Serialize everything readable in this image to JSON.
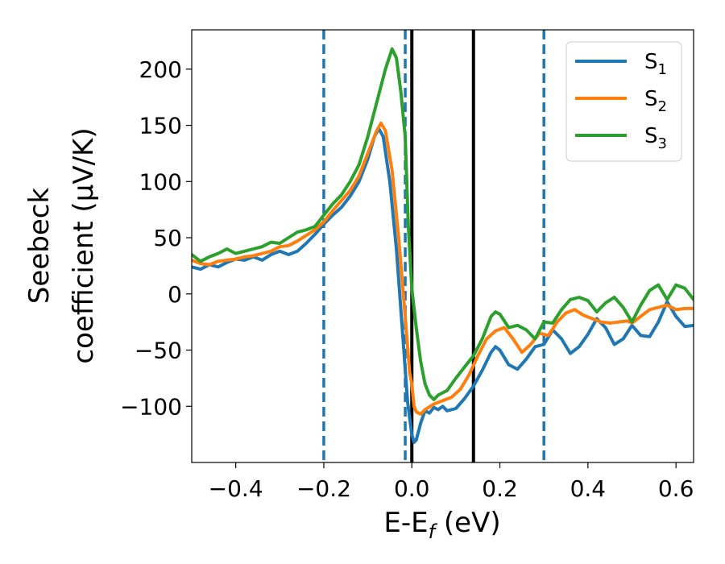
{
  "chart_data": {
    "type": "line",
    "xlabel": "E-E",
    "xlabel_sub": "f",
    "xlabel_unit": " (eV)",
    "ylabel_line1": "Seebeck",
    "ylabel_line2": "coefficient  (μV/K)",
    "xlim": [
      -0.5,
      0.64
    ],
    "ylim": [
      -150,
      235
    ],
    "xticks": [
      -0.4,
      -0.2,
      0.0,
      0.2,
      0.4,
      0.6
    ],
    "xtick_labels": [
      "−0.4",
      "−0.2",
      "0.0",
      "0.2",
      "0.4",
      "0.6"
    ],
    "yticks": [
      -100,
      -50,
      0,
      50,
      100,
      150,
      200
    ],
    "ytick_labels": [
      "−100",
      "−50",
      "0",
      "50",
      "100",
      "150",
      "200"
    ],
    "grid": false,
    "legend_position": "top-right",
    "vlines": [
      {
        "x": -0.2,
        "style": "dashed",
        "color": "#1f77b4"
      },
      {
        "x": -0.015,
        "style": "dashed",
        "color": "#1f77b4"
      },
      {
        "x": 0.3,
        "style": "dashed",
        "color": "#1f77b4"
      },
      {
        "x": 0.0,
        "style": "solid",
        "color": "#000000"
      },
      {
        "x": 0.14,
        "style": "solid",
        "color": "#000000"
      }
    ],
    "series": [
      {
        "name": "S",
        "sub": "1",
        "color": "#1f77b4",
        "points": [
          [
            -0.5,
            24
          ],
          [
            -0.48,
            22
          ],
          [
            -0.46,
            26
          ],
          [
            -0.44,
            24
          ],
          [
            -0.42,
            28
          ],
          [
            -0.4,
            31
          ],
          [
            -0.38,
            30
          ],
          [
            -0.36,
            33
          ],
          [
            -0.34,
            30
          ],
          [
            -0.32,
            35
          ],
          [
            -0.3,
            38
          ],
          [
            -0.28,
            35
          ],
          [
            -0.26,
            38
          ],
          [
            -0.24,
            45
          ],
          [
            -0.22,
            53
          ],
          [
            -0.2,
            62
          ],
          [
            -0.18,
            70
          ],
          [
            -0.16,
            77
          ],
          [
            -0.14,
            87
          ],
          [
            -0.12,
            100
          ],
          [
            -0.1,
            120
          ],
          [
            -0.085,
            140
          ],
          [
            -0.075,
            147
          ],
          [
            -0.065,
            140
          ],
          [
            -0.05,
            100
          ],
          [
            -0.035,
            40
          ],
          [
            -0.02,
            -40
          ],
          [
            -0.01,
            -95
          ],
          [
            0.0,
            -125
          ],
          [
            0.005,
            -132
          ],
          [
            0.01,
            -130
          ],
          [
            0.02,
            -115
          ],
          [
            0.03,
            -104
          ],
          [
            0.04,
            -106
          ],
          [
            0.05,
            -101
          ],
          [
            0.06,
            -103
          ],
          [
            0.07,
            -100
          ],
          [
            0.08,
            -104
          ],
          [
            0.1,
            -102
          ],
          [
            0.12,
            -93
          ],
          [
            0.14,
            -82
          ],
          [
            0.16,
            -68
          ],
          [
            0.18,
            -52
          ],
          [
            0.19,
            -47
          ],
          [
            0.2,
            -50
          ],
          [
            0.22,
            -63
          ],
          [
            0.23,
            -65
          ],
          [
            0.24,
            -67
          ],
          [
            0.26,
            -58
          ],
          [
            0.28,
            -47
          ],
          [
            0.3,
            -45
          ],
          [
            0.32,
            -32
          ],
          [
            0.34,
            -40
          ],
          [
            0.36,
            -53
          ],
          [
            0.38,
            -47
          ],
          [
            0.4,
            -36
          ],
          [
            0.42,
            -22
          ],
          [
            0.44,
            -30
          ],
          [
            0.46,
            -45
          ],
          [
            0.48,
            -40
          ],
          [
            0.5,
            -28
          ],
          [
            0.52,
            -37
          ],
          [
            0.54,
            -38
          ],
          [
            0.56,
            -25
          ],
          [
            0.58,
            -7
          ],
          [
            0.6,
            -20
          ],
          [
            0.62,
            -29
          ],
          [
            0.64,
            -28
          ]
        ]
      },
      {
        "name": "S",
        "sub": "2",
        "color": "#ff7f0e",
        "points": [
          [
            -0.5,
            30
          ],
          [
            -0.48,
            27
          ],
          [
            -0.46,
            26
          ],
          [
            -0.44,
            29
          ],
          [
            -0.42,
            30
          ],
          [
            -0.4,
            31
          ],
          [
            -0.38,
            33
          ],
          [
            -0.36,
            34
          ],
          [
            -0.34,
            36
          ],
          [
            -0.32,
            38
          ],
          [
            -0.3,
            42
          ],
          [
            -0.28,
            43
          ],
          [
            -0.26,
            47
          ],
          [
            -0.24,
            52
          ],
          [
            -0.22,
            57
          ],
          [
            -0.2,
            64
          ],
          [
            -0.18,
            74
          ],
          [
            -0.16,
            83
          ],
          [
            -0.14,
            92
          ],
          [
            -0.12,
            105
          ],
          [
            -0.1,
            125
          ],
          [
            -0.08,
            145
          ],
          [
            -0.07,
            152
          ],
          [
            -0.06,
            145
          ],
          [
            -0.045,
            110
          ],
          [
            -0.03,
            50
          ],
          [
            -0.015,
            -20
          ],
          [
            -0.005,
            -70
          ],
          [
            0.0,
            -80
          ],
          [
            0.005,
            -100
          ],
          [
            0.01,
            -105
          ],
          [
            0.02,
            -107
          ],
          [
            0.03,
            -103
          ],
          [
            0.05,
            -98
          ],
          [
            0.07,
            -95
          ],
          [
            0.09,
            -92
          ],
          [
            0.11,
            -85
          ],
          [
            0.13,
            -72
          ],
          [
            0.15,
            -55
          ],
          [
            0.17,
            -40
          ],
          [
            0.19,
            -33
          ],
          [
            0.21,
            -30
          ],
          [
            0.23,
            -40
          ],
          [
            0.25,
            -52
          ],
          [
            0.27,
            -45
          ],
          [
            0.29,
            -35
          ],
          [
            0.31,
            -37
          ],
          [
            0.33,
            -25
          ],
          [
            0.35,
            -17
          ],
          [
            0.37,
            -14
          ],
          [
            0.39,
            -19
          ],
          [
            0.41,
            -22
          ],
          [
            0.43,
            -25
          ],
          [
            0.45,
            -26
          ],
          [
            0.47,
            -25
          ],
          [
            0.49,
            -24
          ],
          [
            0.5,
            -26
          ],
          [
            0.52,
            -20
          ],
          [
            0.54,
            -14
          ],
          [
            0.56,
            -12
          ],
          [
            0.58,
            -10
          ],
          [
            0.6,
            -14
          ],
          [
            0.62,
            -13
          ],
          [
            0.64,
            -13
          ]
        ]
      },
      {
        "name": "S",
        "sub": "3",
        "color": "#2ca02c",
        "points": [
          [
            -0.5,
            35
          ],
          [
            -0.48,
            29
          ],
          [
            -0.46,
            33
          ],
          [
            -0.44,
            36
          ],
          [
            -0.42,
            40
          ],
          [
            -0.4,
            36
          ],
          [
            -0.38,
            38
          ],
          [
            -0.36,
            40
          ],
          [
            -0.34,
            42
          ],
          [
            -0.32,
            46
          ],
          [
            -0.3,
            45
          ],
          [
            -0.28,
            50
          ],
          [
            -0.26,
            55
          ],
          [
            -0.24,
            57
          ],
          [
            -0.22,
            60
          ],
          [
            -0.2,
            70
          ],
          [
            -0.18,
            80
          ],
          [
            -0.16,
            88
          ],
          [
            -0.14,
            100
          ],
          [
            -0.12,
            115
          ],
          [
            -0.1,
            140
          ],
          [
            -0.08,
            170
          ],
          [
            -0.06,
            200
          ],
          [
            -0.045,
            218
          ],
          [
            -0.035,
            210
          ],
          [
            -0.025,
            180
          ],
          [
            -0.015,
            140
          ],
          [
            -0.008,
            60
          ],
          [
            0.0,
            5
          ],
          [
            0.01,
            -30
          ],
          [
            0.02,
            -60
          ],
          [
            0.03,
            -80
          ],
          [
            0.04,
            -90
          ],
          [
            0.05,
            -94
          ],
          [
            0.06,
            -90
          ],
          [
            0.07,
            -88
          ],
          [
            0.08,
            -86
          ],
          [
            0.1,
            -75
          ],
          [
            0.12,
            -65
          ],
          [
            0.14,
            -55
          ],
          [
            0.16,
            -40
          ],
          [
            0.18,
            -20
          ],
          [
            0.19,
            -16
          ],
          [
            0.2,
            -18
          ],
          [
            0.22,
            -30
          ],
          [
            0.24,
            -28
          ],
          [
            0.26,
            -32
          ],
          [
            0.28,
            -40
          ],
          [
            0.3,
            -25
          ],
          [
            0.32,
            -26
          ],
          [
            0.34,
            -14
          ],
          [
            0.36,
            -5
          ],
          [
            0.38,
            -3
          ],
          [
            0.4,
            -6
          ],
          [
            0.42,
            -16
          ],
          [
            0.44,
            -8
          ],
          [
            0.46,
            -3
          ],
          [
            0.48,
            -12
          ],
          [
            0.5,
            -25
          ],
          [
            0.52,
            -10
          ],
          [
            0.54,
            3
          ],
          [
            0.56,
            8
          ],
          [
            0.58,
            -5
          ],
          [
            0.6,
            8
          ],
          [
            0.62,
            5
          ],
          [
            0.64,
            -5
          ]
        ]
      }
    ]
  }
}
